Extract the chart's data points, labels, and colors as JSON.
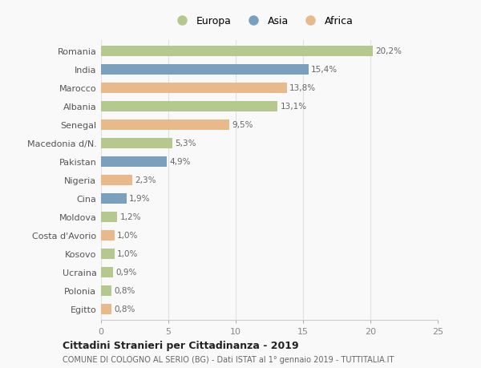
{
  "countries": [
    "Romania",
    "India",
    "Marocco",
    "Albania",
    "Senegal",
    "Macedonia d/N.",
    "Pakistan",
    "Nigeria",
    "Cina",
    "Moldova",
    "Costa d'Avorio",
    "Kosovo",
    "Ucraina",
    "Polonia",
    "Egitto"
  ],
  "values": [
    20.2,
    15.4,
    13.8,
    13.1,
    9.5,
    5.3,
    4.9,
    2.3,
    1.9,
    1.2,
    1.0,
    1.0,
    0.9,
    0.8,
    0.8
  ],
  "labels": [
    "20,2%",
    "15,4%",
    "13,8%",
    "13,1%",
    "9,5%",
    "5,3%",
    "4,9%",
    "2,3%",
    "1,9%",
    "1,2%",
    "1,0%",
    "1,0%",
    "0,9%",
    "0,8%",
    "0,8%"
  ],
  "continents": [
    "Europa",
    "Asia",
    "Africa",
    "Europa",
    "Africa",
    "Europa",
    "Asia",
    "Africa",
    "Asia",
    "Europa",
    "Africa",
    "Europa",
    "Europa",
    "Europa",
    "Africa"
  ],
  "colors": {
    "Europa": "#b5c98e",
    "Asia": "#7b9fbe",
    "Africa": "#e8b98a"
  },
  "xlim": [
    0,
    25
  ],
  "xticks": [
    0,
    5,
    10,
    15,
    20,
    25
  ],
  "title": "Cittadini Stranieri per Cittadinanza - 2019",
  "subtitle": "COMUNE DI COLOGNO AL SERIO (BG) - Dati ISTAT al 1° gennaio 2019 - TUTTITALIA.IT",
  "background_color": "#f9f9f9",
  "bar_height": 0.55,
  "grid_color": "#e0e0e0",
  "label_color": "#666666",
  "ytick_color": "#555555"
}
